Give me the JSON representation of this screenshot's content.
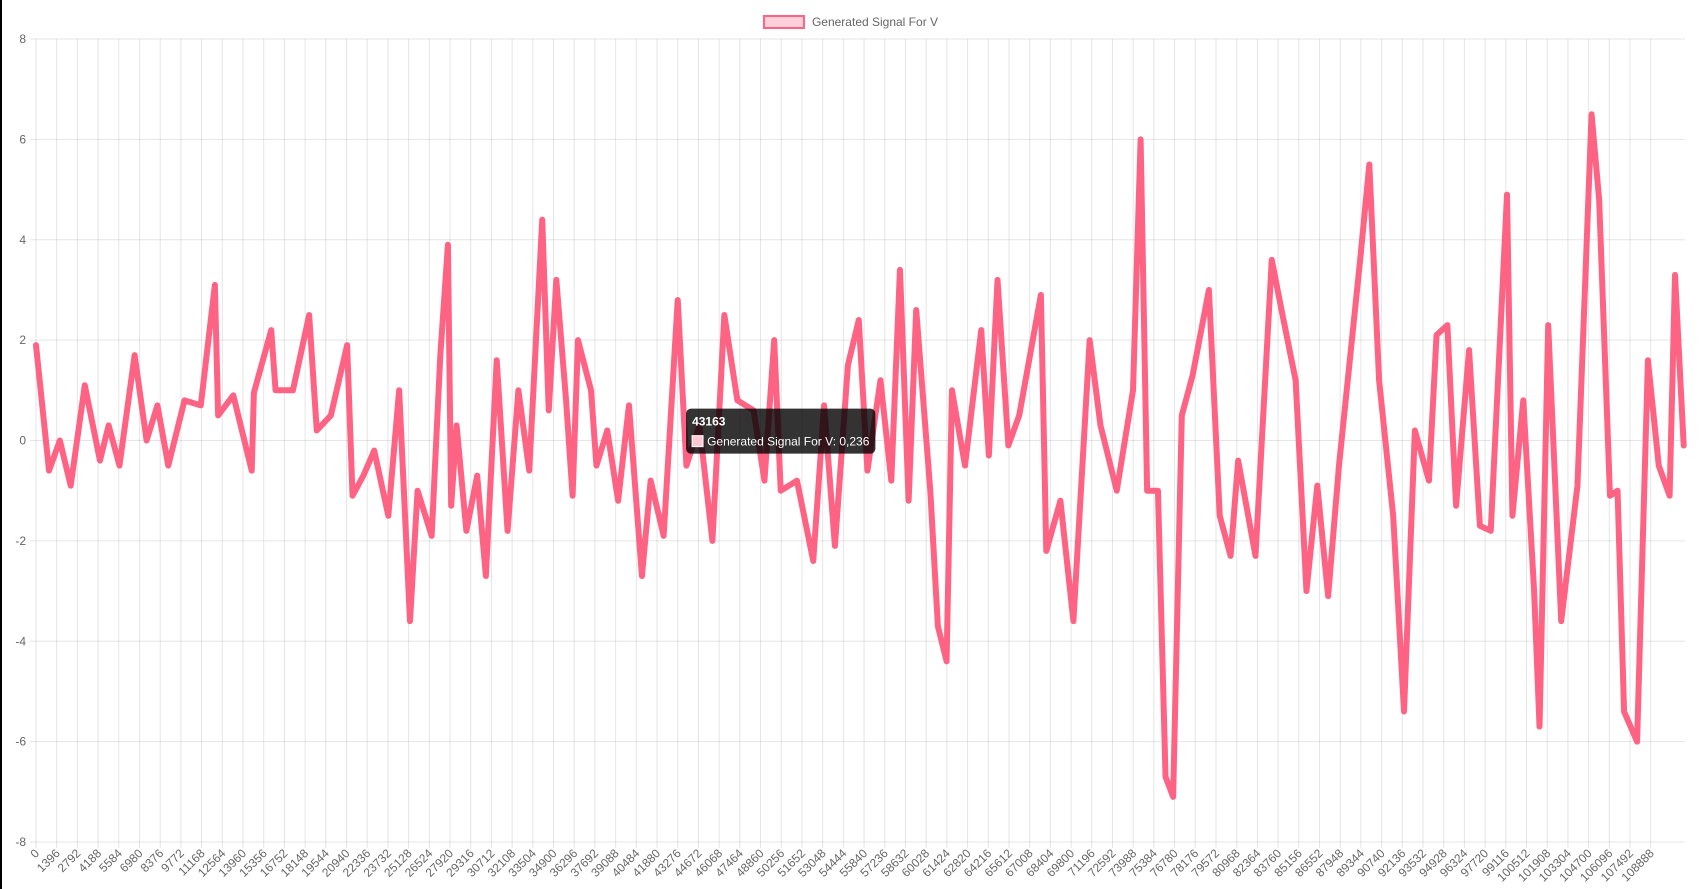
{
  "chart_data": {
    "type": "line",
    "x": [
      0,
      877,
      1608,
      2339,
      3290,
      4313,
      4898,
      5629,
      6652,
      7457,
      8188,
      8919,
      10015,
      11112,
      12062,
      12282,
      13304,
      14547,
      14693,
      15863,
      16155,
      17325,
      18421,
      18933,
      19883,
      20980,
      21345,
      22076,
      22807,
      23758,
      24489,
      25220,
      25731,
      26682,
      27266,
      27778,
      27997,
      28363,
      29021,
      29752,
      30336,
      31068,
      31799,
      32530,
      33261,
      34138,
      34576,
      35088,
      35746,
      36185,
      36550,
      37427,
      37793,
      38524,
      39255,
      39986,
      40863,
      41448,
      42325,
      43275,
      43860,
      44737,
      45614,
      46418,
      47296,
      48392,
      49123,
      49781,
      50220,
      51316,
      52413,
      53144,
      53875,
      54752,
      55483,
      56068,
      56945,
      57676,
      58261,
      58845,
      59357,
      60307,
      60819,
      61404,
      61769,
      62646,
      63743,
      64255,
      64840,
      65571,
      66302,
      67764,
      68129,
      69080,
      69957,
      71053,
      71784,
      72881,
      73977,
      74489,
      74928,
      75659,
      76170,
      76682,
      77267,
      77998,
      79094,
      79825,
      80556,
      81068,
      82237,
      83334,
      83992,
      84942,
      85673,
      86404,
      87135,
      87866,
      89328,
      89913,
      90571,
      91521,
      92252,
      92983,
      93934,
      94446,
      95177,
      95762,
      96639,
      97370,
      98101,
      99197,
      99563,
      100294,
      101025,
      101390,
      101975,
      102852,
      103948,
      104899,
      105411,
      106142,
      106653,
      107092,
      107969,
      108700,
      109431,
      110162,
      110527,
      111112
    ],
    "series": [
      {
        "name": "Generated Signal For V",
        "color": "#ff6384",
        "values": [
          1.9,
          -0.6,
          0,
          -0.9,
          1.1,
          -0.4,
          0.3,
          -0.5,
          1.7,
          0,
          0.7,
          -0.5,
          0.8,
          0.7,
          3.1,
          0.5,
          0.9,
          -0.6,
          0.95,
          2.2,
          1,
          1,
          2.5,
          0.2,
          0.5,
          1.9,
          -1.1,
          -0.7,
          -0.2,
          -1.5,
          1,
          -3.6,
          -1,
          -1.9,
          1.7,
          3.9,
          -1.3,
          0.3,
          -1.8,
          -0.7,
          -2.7,
          1.6,
          -1.8,
          1,
          -0.6,
          4.4,
          0.6,
          3.2,
          0.8,
          -1.1,
          2,
          1,
          -0.5,
          0.2,
          -1.2,
          0.7,
          -2.7,
          -0.8,
          -1.9,
          2.8,
          -0.5,
          0.3,
          -2,
          2.5,
          0.8,
          0.6,
          -0.8,
          2,
          -1,
          -0.8,
          -2.4,
          0.7,
          -2.1,
          1.5,
          2.4,
          -0.6,
          1.2,
          -0.8,
          3.4,
          -1.2,
          2.6,
          -1,
          -3.7,
          -4.4,
          1,
          -0.5,
          2.2,
          -0.3,
          3.2,
          -0.1,
          0.5,
          2.9,
          -2.2,
          -1.2,
          -3.6,
          2,
          0.3,
          -1,
          1,
          6,
          -1,
          -1,
          -6.7,
          -7.1,
          0.5,
          1.3,
          3,
          -1.5,
          -2.3,
          -0.4,
          -2.3,
          3.6,
          2.6,
          1.2,
          -3,
          -0.9,
          -3.1,
          -0.5,
          3.7,
          5.5,
          1.2,
          -1.5,
          -5.4,
          0.2,
          -0.8,
          2.1,
          2.3,
          -1.3,
          1.8,
          -1.7,
          -1.8,
          4.9,
          -1.5,
          0.8,
          -3,
          -5.7,
          2.3,
          -3.6,
          -0.9,
          6.5,
          4.8,
          -1.1,
          -1,
          -5.4,
          -6,
          1.6,
          -0.5,
          -1.1,
          3.3,
          -0.1
        ]
      }
    ],
    "xlim": [
      0,
      111200
    ],
    "xticks": [
      0,
      1396,
      2792,
      4188,
      5584,
      6980,
      8376,
      9772,
      11168,
      12564,
      13960,
      15356,
      16752,
      18148,
      19544,
      20940,
      22336,
      23732,
      25128,
      26524,
      27920,
      29316,
      30712,
      32108,
      33504,
      34900,
      36296,
      37692,
      39088,
      40484,
      41880,
      43276,
      44672,
      46068,
      47464,
      48860,
      50256,
      51652,
      53048,
      54444,
      55840,
      57236,
      58632,
      60028,
      61424,
      62820,
      64216,
      65612,
      67008,
      68404,
      69800,
      71196,
      72592,
      73988,
      75384,
      76780,
      78176,
      79572,
      80968,
      82364,
      83760,
      85156,
      86552,
      87948,
      89344,
      90740,
      92136,
      93532,
      94928,
      96324,
      97720,
      99116,
      100512,
      101908,
      103304,
      104700,
      106096,
      107492,
      108888
    ],
    "ylim": [
      -8,
      8
    ],
    "yticks": [
      -8,
      -6,
      -4,
      -2,
      0,
      2,
      4,
      6,
      8
    ],
    "grid": true,
    "legend": "top",
    "tooltip": {
      "title": 43163,
      "label": "Generated Signal For V: 0,236",
      "y": 0.236
    }
  }
}
